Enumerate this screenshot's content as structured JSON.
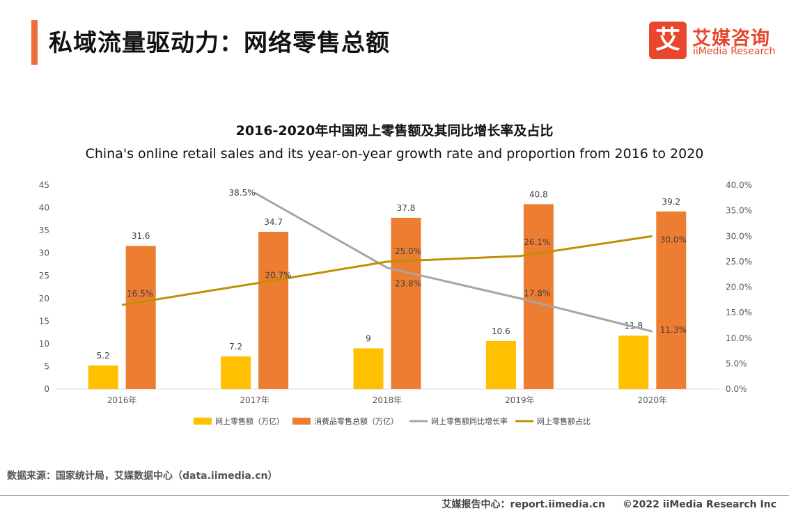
{
  "header": {
    "title": "私域流量驱动力：网络零售总额",
    "logo_mark": "艾",
    "logo_cn": "艾媒咨询",
    "logo_en": "iiMedia Research"
  },
  "chart_data": {
    "type": "bar",
    "title": "2016-2020年中国网上零售额及其同比增长率及占比",
    "subtitle": "China's online retail sales and its year-on-year growth rate and proportion from 2016  to 2020",
    "categories": [
      "2016年",
      "2017年",
      "2018年",
      "2019年",
      "2020年"
    ],
    "ylim": [
      0,
      45
    ],
    "y_ticks": [
      "0",
      "5",
      "10",
      "15",
      "20",
      "25",
      "30",
      "35",
      "40",
      "45"
    ],
    "y2lim": [
      0,
      40
    ],
    "y2_ticks": [
      "0.0%",
      "5.0%",
      "10.0%",
      "15.0%",
      "20.0%",
      "25.0%",
      "30.0%",
      "35.0%",
      "40.0%"
    ],
    "grid": false,
    "legend_position": "bottom",
    "series": [
      {
        "name": "网上零售额（万亿）",
        "type": "bar",
        "axis": "left",
        "color": "#ffc000",
        "values": [
          5.2,
          7.2,
          9,
          10.6,
          11.8
        ],
        "labels": [
          "5.2",
          "7.2",
          "9",
          "10.6",
          "11.8"
        ]
      },
      {
        "name": "消费品零售总额（万亿）",
        "type": "bar",
        "axis": "left",
        "color": "#ed7d31",
        "values": [
          31.6,
          34.7,
          37.8,
          40.8,
          39.2
        ],
        "labels": [
          "31.6",
          "34.7",
          "37.8",
          "40.8",
          "39.2"
        ]
      },
      {
        "name": "网上零售额同比增长率",
        "type": "line",
        "axis": "right",
        "color": "#a5a5a5",
        "values": [
          null,
          38.5,
          23.8,
          17.8,
          11.3
        ],
        "labels": [
          "",
          "38.5%",
          "23.8%",
          "17.8%",
          "11.3%"
        ]
      },
      {
        "name": "网上零售额占比",
        "type": "line",
        "axis": "right",
        "color": "#bf9000",
        "values": [
          16.5,
          20.7,
          25.0,
          26.1,
          30.0
        ],
        "labels": [
          "16.5%",
          "20.7%",
          "25.0%",
          "26.1%",
          "30.0%"
        ]
      }
    ]
  },
  "source": "数据来源：国家统计局，艾媒数据中心（data.iimedia.cn）",
  "footer": {
    "report_center": "艾媒报告中心：report.iimedia.cn",
    "copyright": "©2022  iiMedia Research  Inc"
  }
}
